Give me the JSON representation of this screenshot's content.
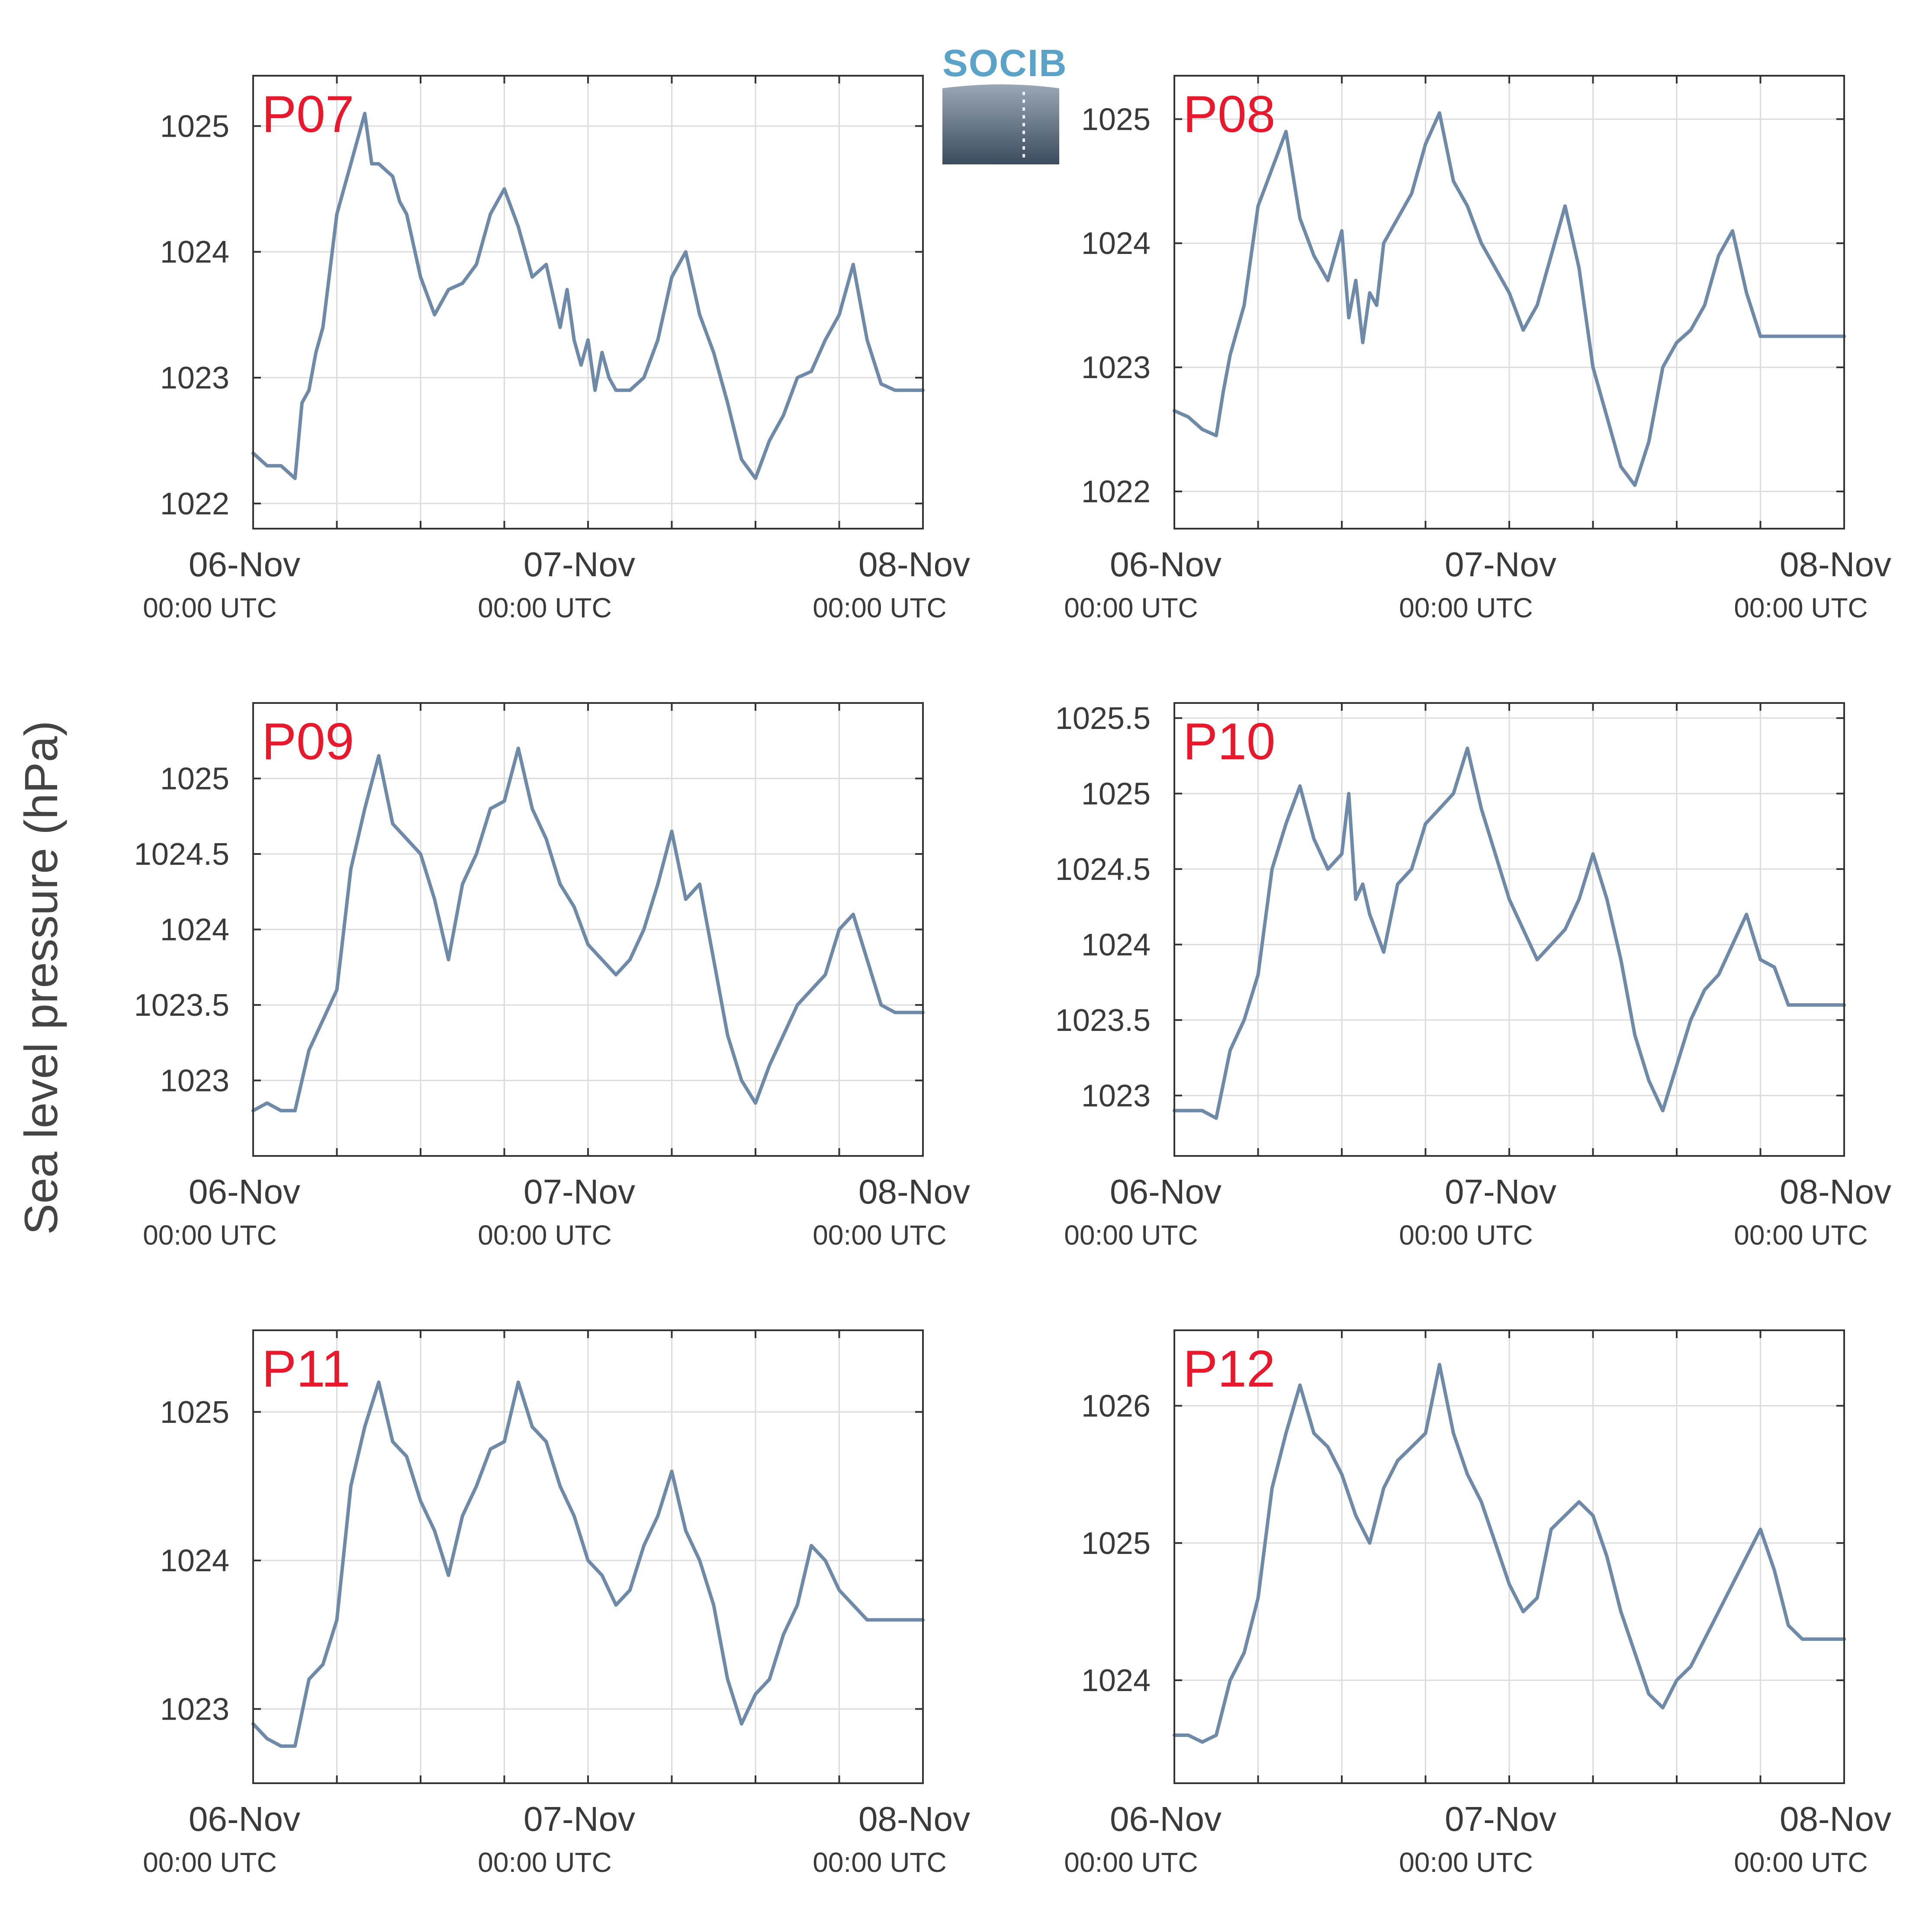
{
  "figure": {
    "ylabel": "Sea level pressure (hPa)",
    "logo_text": "SOCIB",
    "line_color": "#6e8aa8",
    "label_color": "#e8192c",
    "logo_color": "#5ba2c9"
  },
  "chart_data": [
    {
      "type": "line",
      "title": "P07",
      "xticks": [
        {
          "top": "06-Nov",
          "bottom": "00:00 UTC"
        },
        {
          "top": "07-Nov",
          "bottom": "00:00 UTC"
        },
        {
          "top": "08-Nov",
          "bottom": "00:00 UTC"
        }
      ],
      "xlim_hours": [
        0,
        48
      ],
      "ylim": [
        1021.8,
        1025.4
      ],
      "yticks": [
        {
          "value": 1022,
          "label": "1022"
        },
        {
          "value": 1023,
          "label": "1023"
        },
        {
          "value": 1024,
          "label": "1024"
        },
        {
          "value": 1025,
          "label": "1025"
        }
      ],
      "series": [
        {
          "x_hours": [
            0,
            1,
            2,
            3,
            3.5,
            4,
            4.5,
            5,
            6,
            7,
            8,
            8.5,
            9,
            10,
            10.5,
            11,
            12,
            13,
            14,
            15,
            16,
            17,
            18,
            19,
            20,
            21,
            22,
            22.5,
            23,
            23.5,
            24,
            24.5,
            25,
            25.5,
            26,
            27,
            28,
            29,
            30,
            31,
            32,
            33,
            34,
            35,
            36,
            37,
            38,
            39,
            40,
            41,
            42,
            43,
            44,
            45,
            46,
            47,
            48
          ],
          "y": [
            1022.4,
            1022.3,
            1022.3,
            1022.2,
            1022.8,
            1022.9,
            1023.2,
            1023.4,
            1024.3,
            1024.7,
            1025.1,
            1024.7,
            1024.7,
            1024.6,
            1024.4,
            1024.3,
            1023.8,
            1023.5,
            1023.7,
            1023.75,
            1023.9,
            1024.3,
            1024.5,
            1024.2,
            1023.8,
            1023.9,
            1023.4,
            1023.7,
            1023.3,
            1023.1,
            1023.3,
            1022.9,
            1023.2,
            1023.0,
            1022.9,
            1022.9,
            1023.0,
            1023.3,
            1023.8,
            1024.0,
            1023.5,
            1023.2,
            1022.8,
            1022.35,
            1022.2,
            1022.5,
            1022.7,
            1023.0,
            1023.05,
            1023.3,
            1023.5,
            1023.9,
            1023.3,
            1022.95,
            1022.9,
            1022.9,
            1022.9
          ]
        }
      ]
    },
    {
      "type": "line",
      "title": "P08",
      "xticks": [
        {
          "top": "06-Nov",
          "bottom": "00:00 UTC"
        },
        {
          "top": "07-Nov",
          "bottom": "00:00 UTC"
        },
        {
          "top": "08-Nov",
          "bottom": "00:00 UTC"
        }
      ],
      "xlim_hours": [
        0,
        48
      ],
      "ylim": [
        1021.7,
        1025.35
      ],
      "yticks": [
        {
          "value": 1022,
          "label": "1022"
        },
        {
          "value": 1023,
          "label": "1023"
        },
        {
          "value": 1024,
          "label": "1024"
        },
        {
          "value": 1025,
          "label": "1025"
        }
      ],
      "series": [
        {
          "x_hours": [
            0,
            1,
            2,
            3,
            3.5,
            4,
            5,
            6,
            7,
            8,
            9,
            10,
            11,
            12,
            12.5,
            13,
            13.5,
            14,
            14.5,
            15,
            16,
            17,
            18,
            19,
            20,
            21,
            22,
            23,
            24,
            25,
            26,
            27,
            28,
            29,
            30,
            31,
            32,
            33,
            34,
            35,
            36,
            37,
            38,
            39,
            40,
            41,
            42,
            43,
            44,
            45,
            46,
            47,
            48
          ],
          "y": [
            1022.65,
            1022.6,
            1022.5,
            1022.45,
            1022.8,
            1023.1,
            1023.5,
            1024.3,
            1024.6,
            1024.9,
            1024.2,
            1023.9,
            1023.7,
            1024.1,
            1023.4,
            1023.7,
            1023.2,
            1023.6,
            1023.5,
            1024.0,
            1024.2,
            1024.4,
            1024.8,
            1025.05,
            1024.5,
            1024.3,
            1024.0,
            1023.8,
            1023.6,
            1023.3,
            1023.5,
            1023.9,
            1024.3,
            1023.8,
            1023.0,
            1022.6,
            1022.2,
            1022.05,
            1022.4,
            1023.0,
            1023.2,
            1023.3,
            1023.5,
            1023.9,
            1024.1,
            1023.6,
            1023.25,
            1023.25,
            1023.25,
            1023.25,
            1023.25,
            1023.25,
            1023.25
          ]
        }
      ]
    },
    {
      "type": "line",
      "title": "P09",
      "xticks": [
        {
          "top": "06-Nov",
          "bottom": "00:00 UTC"
        },
        {
          "top": "07-Nov",
          "bottom": "00:00 UTC"
        },
        {
          "top": "08-Nov",
          "bottom": "00:00 UTC"
        }
      ],
      "xlim_hours": [
        0,
        48
      ],
      "ylim": [
        1022.5,
        1025.5
      ],
      "yticks": [
        {
          "value": 1023,
          "label": "1023"
        },
        {
          "value": 1023.5,
          "label": "1023.5"
        },
        {
          "value": 1024,
          "label": "1024"
        },
        {
          "value": 1024.5,
          "label": "1024.5"
        },
        {
          "value": 1025,
          "label": "1025"
        }
      ],
      "series": [
        {
          "x_hours": [
            0,
            1,
            2,
            3,
            4,
            5,
            6,
            7,
            8,
            9,
            10,
            11,
            12,
            13,
            14,
            15,
            16,
            17,
            18,
            19,
            20,
            21,
            22,
            23,
            24,
            25,
            26,
            27,
            28,
            29,
            30,
            31,
            32,
            33,
            34,
            35,
            36,
            37,
            38,
            39,
            40,
            41,
            42,
            43,
            44,
            45,
            46,
            47,
            48
          ],
          "y": [
            1022.8,
            1022.85,
            1022.8,
            1022.8,
            1023.2,
            1023.4,
            1023.6,
            1024.4,
            1024.8,
            1025.15,
            1024.7,
            1024.6,
            1024.5,
            1024.2,
            1023.8,
            1024.3,
            1024.5,
            1024.8,
            1024.85,
            1025.2,
            1024.8,
            1024.6,
            1024.3,
            1024.15,
            1023.9,
            1023.8,
            1023.7,
            1023.8,
            1024.0,
            1024.3,
            1024.65,
            1024.2,
            1024.3,
            1023.8,
            1023.3,
            1023.0,
            1022.85,
            1023.1,
            1023.3,
            1023.5,
            1023.6,
            1023.7,
            1024.0,
            1024.1,
            1023.8,
            1023.5,
            1023.45,
            1023.45,
            1023.45
          ]
        }
      ]
    },
    {
      "type": "line",
      "title": "P10",
      "xticks": [
        {
          "top": "06-Nov",
          "bottom": "00:00 UTC"
        },
        {
          "top": "07-Nov",
          "bottom": "00:00 UTC"
        },
        {
          "top": "08-Nov",
          "bottom": "00:00 UTC"
        }
      ],
      "xlim_hours": [
        0,
        48
      ],
      "ylim": [
        1022.6,
        1025.6
      ],
      "yticks": [
        {
          "value": 1023,
          "label": "1023"
        },
        {
          "value": 1023.5,
          "label": "1023.5"
        },
        {
          "value": 1024,
          "label": "1024"
        },
        {
          "value": 1024.5,
          "label": "1024.5"
        },
        {
          "value": 1025,
          "label": "1025"
        },
        {
          "value": 1025.5,
          "label": "1025.5"
        }
      ],
      "series": [
        {
          "x_hours": [
            0,
            1,
            2,
            3,
            4,
            5,
            6,
            7,
            8,
            9,
            10,
            11,
            12,
            12.5,
            13,
            13.5,
            14,
            15,
            16,
            17,
            18,
            19,
            20,
            21,
            22,
            23,
            24,
            25,
            26,
            27,
            28,
            29,
            30,
            31,
            32,
            33,
            34,
            35,
            36,
            37,
            38,
            39,
            40,
            41,
            42,
            43,
            44,
            45,
            46,
            47,
            48
          ],
          "y": [
            1022.9,
            1022.9,
            1022.9,
            1022.85,
            1023.3,
            1023.5,
            1023.8,
            1024.5,
            1024.8,
            1025.05,
            1024.7,
            1024.5,
            1024.6,
            1025.0,
            1024.3,
            1024.4,
            1024.2,
            1023.95,
            1024.4,
            1024.5,
            1024.8,
            1024.9,
            1025.0,
            1025.3,
            1024.9,
            1024.6,
            1024.3,
            1024.1,
            1023.9,
            1024.0,
            1024.1,
            1024.3,
            1024.6,
            1024.3,
            1023.9,
            1023.4,
            1023.1,
            1022.9,
            1023.2,
            1023.5,
            1023.7,
            1023.8,
            1024.0,
            1024.2,
            1023.9,
            1023.85,
            1023.6,
            1023.6,
            1023.6,
            1023.6,
            1023.6
          ]
        }
      ]
    },
    {
      "type": "line",
      "title": "P11",
      "xticks": [
        {
          "top": "06-Nov",
          "bottom": "00:00 UTC"
        },
        {
          "top": "07-Nov",
          "bottom": "00:00 UTC"
        },
        {
          "top": "08-Nov",
          "bottom": "00:00 UTC"
        }
      ],
      "xlim_hours": [
        0,
        48
      ],
      "ylim": [
        1022.5,
        1025.55
      ],
      "yticks": [
        {
          "value": 1023,
          "label": "1023"
        },
        {
          "value": 1024,
          "label": "1024"
        },
        {
          "value": 1025,
          "label": "1025"
        }
      ],
      "series": [
        {
          "x_hours": [
            0,
            1,
            2,
            3,
            4,
            5,
            6,
            7,
            8,
            9,
            10,
            11,
            12,
            13,
            14,
            15,
            16,
            17,
            18,
            19,
            20,
            21,
            22,
            23,
            24,
            25,
            26,
            27,
            28,
            29,
            30,
            31,
            32,
            33,
            34,
            35,
            36,
            37,
            38,
            39,
            40,
            41,
            42,
            43,
            44,
            45,
            46,
            47,
            48
          ],
          "y": [
            1022.9,
            1022.8,
            1022.75,
            1022.75,
            1023.2,
            1023.3,
            1023.6,
            1024.5,
            1024.9,
            1025.2,
            1024.8,
            1024.7,
            1024.4,
            1024.2,
            1023.9,
            1024.3,
            1024.5,
            1024.75,
            1024.8,
            1025.2,
            1024.9,
            1024.8,
            1024.5,
            1024.3,
            1024.0,
            1023.9,
            1023.7,
            1023.8,
            1024.1,
            1024.3,
            1024.6,
            1024.2,
            1024.0,
            1023.7,
            1023.2,
            1022.9,
            1023.1,
            1023.2,
            1023.5,
            1023.7,
            1024.1,
            1024.0,
            1023.8,
            1023.7,
            1023.6,
            1023.6,
            1023.6,
            1023.6,
            1023.6
          ]
        }
      ]
    },
    {
      "type": "line",
      "title": "P12",
      "xticks": [
        {
          "top": "06-Nov",
          "bottom": "00:00 UTC"
        },
        {
          "top": "07-Nov",
          "bottom": "00:00 UTC"
        },
        {
          "top": "08-Nov",
          "bottom": "00:00 UTC"
        }
      ],
      "xlim_hours": [
        0,
        48
      ],
      "ylim": [
        1023.25,
        1026.55
      ],
      "yticks": [
        {
          "value": 1024,
          "label": "1024"
        },
        {
          "value": 1025,
          "label": "1025"
        },
        {
          "value": 1026,
          "label": "1026"
        }
      ],
      "series": [
        {
          "x_hours": [
            0,
            1,
            2,
            3,
            4,
            5,
            6,
            7,
            8,
            9,
            10,
            11,
            12,
            13,
            14,
            15,
            16,
            17,
            18,
            19,
            20,
            21,
            22,
            23,
            24,
            25,
            26,
            27,
            28,
            29,
            30,
            31,
            32,
            33,
            34,
            35,
            36,
            37,
            38,
            39,
            40,
            41,
            42,
            43,
            44,
            45,
            46,
            47,
            48
          ],
          "y": [
            1023.6,
            1023.6,
            1023.55,
            1023.6,
            1024.0,
            1024.2,
            1024.6,
            1025.4,
            1025.8,
            1026.15,
            1025.8,
            1025.7,
            1025.5,
            1025.2,
            1025.0,
            1025.4,
            1025.6,
            1025.7,
            1025.8,
            1026.3,
            1025.8,
            1025.5,
            1025.3,
            1025.0,
            1024.7,
            1024.5,
            1024.6,
            1025.1,
            1025.2,
            1025.3,
            1025.2,
            1024.9,
            1024.5,
            1024.2,
            1023.9,
            1023.8,
            1024.0,
            1024.1,
            1024.3,
            1024.5,
            1024.7,
            1024.9,
            1025.1,
            1024.8,
            1024.4,
            1024.3,
            1024.3,
            1024.3,
            1024.3
          ]
        }
      ]
    }
  ]
}
